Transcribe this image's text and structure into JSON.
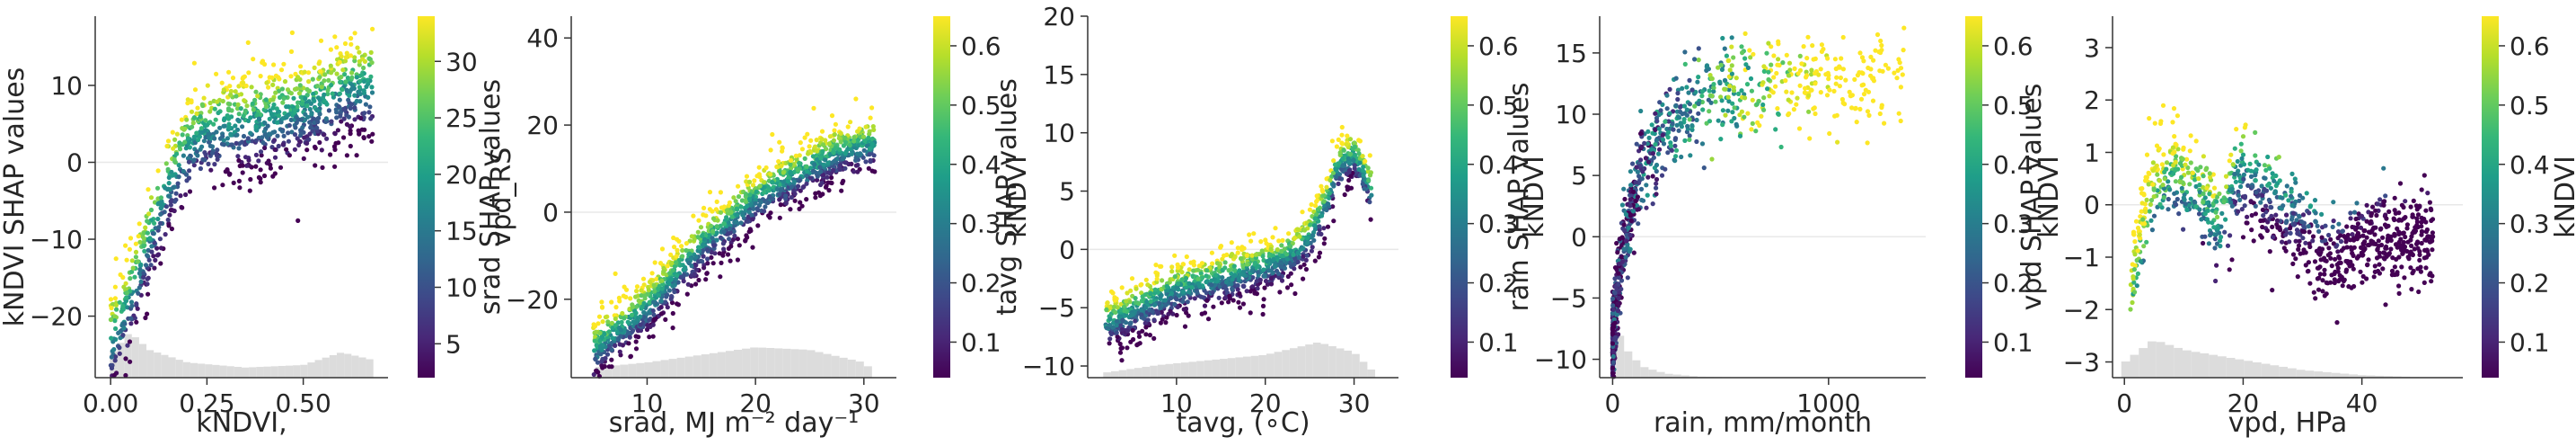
{
  "chart_data": [
    {
      "type": "scatter",
      "xlabel": "kNDVI,",
      "ylabel": "kNDVI SHAP values",
      "xlim": [
        -0.04,
        0.72
      ],
      "ylim": [
        -28,
        19
      ],
      "xticks": [
        0.0,
        0.25,
        0.5
      ],
      "xtick_labels": [
        "0.00",
        "0.25",
        "0.50"
      ],
      "yticks": [
        -20,
        -10,
        0,
        10
      ],
      "ytick_labels": [
        "−20",
        "−10",
        "0",
        "10"
      ],
      "colorbar": {
        "label": "vpd_RS",
        "min": 2,
        "max": 34,
        "ticks": [
          5,
          10,
          15,
          20,
          25,
          30
        ],
        "tick_labels": [
          "5",
          "10",
          "15",
          "20",
          "25",
          "30"
        ]
      },
      "colormap": [
        "#440154",
        "#482878",
        "#3e4989",
        "#31688e",
        "#26828e",
        "#1f9e89",
        "#35b779",
        "#6ece58",
        "#b5de2b",
        "#fde725"
      ],
      "grid": false,
      "zero_line": 0,
      "histogram_color": "#dcdcdc",
      "trend": [
        [
          0.0,
          -24
        ],
        [
          0.05,
          -18
        ],
        [
          0.1,
          -10
        ],
        [
          0.15,
          -3
        ],
        [
          0.2,
          2
        ],
        [
          0.25,
          4
        ],
        [
          0.35,
          5
        ],
        [
          0.45,
          6
        ],
        [
          0.55,
          7.5
        ],
        [
          0.6,
          9
        ],
        [
          0.67,
          10
        ]
      ],
      "x_range": [
        0.0,
        0.68
      ],
      "spread": 3.5,
      "color_mode": "vertical",
      "points": 1100,
      "hist_profile": [
        [
          0.0,
          0.45
        ],
        [
          0.05,
          0.9
        ],
        [
          0.1,
          0.55
        ],
        [
          0.2,
          0.3
        ],
        [
          0.35,
          0.2
        ],
        [
          0.5,
          0.25
        ],
        [
          0.6,
          0.5
        ],
        [
          0.68,
          0.35
        ]
      ]
    },
    {
      "type": "scatter",
      "xlabel": "srad, MJ m⁻² day⁻¹",
      "ylabel": "srad SHAP values",
      "xlim": [
        3,
        33
      ],
      "ylim": [
        -38,
        45
      ],
      "xticks": [
        10,
        20,
        30
      ],
      "xtick_labels": [
        "10",
        "20",
        "30"
      ],
      "yticks": [
        -20,
        0,
        20,
        40
      ],
      "ytick_labels": [
        "−20",
        "0",
        "20",
        "40"
      ],
      "colorbar": {
        "label": "kNDVI",
        "min": 0.04,
        "max": 0.65,
        "ticks": [
          0.1,
          0.2,
          0.3,
          0.4,
          0.5,
          0.6
        ],
        "tick_labels": [
          "0.1",
          "0.2",
          "0.3",
          "0.4",
          "0.5",
          "0.6"
        ]
      },
      "colormap": [
        "#440154",
        "#482878",
        "#3e4989",
        "#31688e",
        "#26828e",
        "#1f9e89",
        "#35b779",
        "#6ece58",
        "#b5de2b",
        "#fde725"
      ],
      "grid": false,
      "zero_line": 0,
      "histogram_color": "#dcdcdc",
      "trend": [
        [
          5,
          -32
        ],
        [
          10,
          -22
        ],
        [
          15,
          -8
        ],
        [
          20,
          3
        ],
        [
          25,
          10
        ],
        [
          28,
          14
        ],
        [
          30,
          15
        ]
      ],
      "x_range": [
        5,
        31
      ],
      "spread": 3.5,
      "color_mode": "vertical",
      "points": 1300,
      "hist_profile": [
        [
          5,
          0.2
        ],
        [
          10,
          0.3
        ],
        [
          15,
          0.45
        ],
        [
          20,
          0.6
        ],
        [
          25,
          0.55
        ],
        [
          30,
          0.3
        ],
        [
          31,
          0.1
        ]
      ]
    },
    {
      "type": "scatter",
      "xlabel": "tavg, (∘C)",
      "ylabel": "tavg SHAP values",
      "xlim": [
        0,
        35
      ],
      "ylim": [
        -11,
        20
      ],
      "xticks": [
        10,
        20,
        30
      ],
      "xtick_labels": [
        "10",
        "20",
        "30"
      ],
      "yticks": [
        -10,
        -5,
        0,
        5,
        10,
        15,
        20
      ],
      "ytick_labels": [
        "−10",
        "−5",
        "0",
        "5",
        "10",
        "15",
        "20"
      ],
      "colorbar": {
        "label": "kNDVI",
        "min": 0.04,
        "max": 0.65,
        "ticks": [
          0.1,
          0.2,
          0.3,
          0.4,
          0.5,
          0.6
        ],
        "tick_labels": [
          "0.1",
          "0.2",
          "0.3",
          "0.4",
          "0.5",
          "0.6"
        ]
      },
      "colormap": [
        "#440154",
        "#482878",
        "#3e4989",
        "#31688e",
        "#26828e",
        "#1f9e89",
        "#35b779",
        "#6ece58",
        "#b5de2b",
        "#fde725"
      ],
      "grid": false,
      "zero_line": 0,
      "histogram_color": "#dcdcdc",
      "trend": [
        [
          2,
          -6.5
        ],
        [
          6,
          -5
        ],
        [
          10,
          -3.5
        ],
        [
          15,
          -2.5
        ],
        [
          20,
          -1.5
        ],
        [
          23,
          -0.5
        ],
        [
          25,
          1
        ],
        [
          27,
          4
        ],
        [
          28,
          7
        ],
        [
          30,
          8
        ],
        [
          32,
          5
        ]
      ],
      "x_range": [
        2,
        32
      ],
      "spread": 1.2,
      "color_mode": "vertical",
      "points": 1200,
      "hist_profile": [
        [
          2,
          0.1
        ],
        [
          8,
          0.25
        ],
        [
          14,
          0.35
        ],
        [
          20,
          0.45
        ],
        [
          26,
          0.7
        ],
        [
          30,
          0.5
        ],
        [
          32,
          0.15
        ]
      ]
    },
    {
      "type": "scatter",
      "xlabel": "rain, mm/month",
      "ylabel": "rain SHAP values",
      "xlim": [
        -60,
        1450
      ],
      "ylim": [
        -11.5,
        18
      ],
      "xticks": [
        0,
        1000
      ],
      "xtick_labels": [
        "0",
        "1000"
      ],
      "yticks": [
        -10,
        -5,
        0,
        5,
        10,
        15
      ],
      "ytick_labels": [
        "−10",
        "−5",
        "0",
        "5",
        "10",
        "15"
      ],
      "colorbar": {
        "label": "kNDVI",
        "min": 0.04,
        "max": 0.65,
        "ticks": [
          0.1,
          0.2,
          0.3,
          0.4,
          0.5,
          0.6
        ],
        "tick_labels": [
          "0.1",
          "0.2",
          "0.3",
          "0.4",
          "0.5",
          "0.6"
        ]
      },
      "colormap": [
        "#440154",
        "#482878",
        "#3e4989",
        "#31688e",
        "#26828e",
        "#1f9e89",
        "#35b779",
        "#6ece58",
        "#b5de2b",
        "#fde725"
      ],
      "grid": false,
      "zero_line": 0,
      "histogram_color": "#dcdcdc",
      "trend": [
        [
          0,
          -9
        ],
        [
          25,
          -4
        ],
        [
          60,
          0
        ],
        [
          120,
          5
        ],
        [
          200,
          8
        ],
        [
          300,
          10
        ],
        [
          500,
          12
        ],
        [
          800,
          12.5
        ],
        [
          1100,
          12.5
        ],
        [
          1350,
          13
        ]
      ],
      "x_range": [
        0,
        1350
      ],
      "spread": 1.8,
      "color_mode": "x",
      "points": 900,
      "hist_profile": [
        [
          0,
          1.0
        ],
        [
          40,
          0.8
        ],
        [
          80,
          0.45
        ],
        [
          150,
          0.2
        ],
        [
          250,
          0.08
        ],
        [
          400,
          0.02
        ],
        [
          700,
          0.0
        ]
      ]
    },
    {
      "type": "scatter",
      "xlabel": "vpd, HPa",
      "ylabel": "vpd SHAP values",
      "xlim": [
        -2,
        57
      ],
      "ylim": [
        -3.3,
        3.6
      ],
      "xticks": [
        0,
        20,
        40
      ],
      "xtick_labels": [
        "0",
        "20",
        "40"
      ],
      "yticks": [
        -3,
        -2,
        -1,
        0,
        1,
        2,
        3
      ],
      "ytick_labels": [
        "−3",
        "−2",
        "−1",
        "0",
        "1",
        "2",
        "3"
      ],
      "colorbar": {
        "label": "kNDVI",
        "min": 0.04,
        "max": 0.65,
        "ticks": [
          0.1,
          0.2,
          0.3,
          0.4,
          0.5,
          0.6
        ],
        "tick_labels": [
          "0.1",
          "0.2",
          "0.3",
          "0.4",
          "0.5",
          "0.6"
        ]
      },
      "colormap": [
        "#440154",
        "#482878",
        "#3e4989",
        "#31688e",
        "#26828e",
        "#1f9e89",
        "#35b779",
        "#6ece58",
        "#b5de2b",
        "#fde725"
      ],
      "grid": false,
      "zero_line": 0,
      "histogram_color": "#dcdcdc",
      "trend": [
        [
          1,
          -1.5
        ],
        [
          3,
          -0.3
        ],
        [
          5,
          0.5
        ],
        [
          8,
          0.8
        ],
        [
          10,
          0.5
        ],
        [
          13,
          0.2
        ],
        [
          16,
          -0.5
        ],
        [
          18,
          0.3
        ],
        [
          20,
          0.6
        ],
        [
          23,
          0.2
        ],
        [
          27,
          -0.3
        ],
        [
          30,
          -0.5
        ],
        [
          33,
          -0.8
        ],
        [
          36,
          -1.0
        ],
        [
          40,
          -0.7
        ],
        [
          45,
          -0.6
        ],
        [
          52,
          -0.6
        ]
      ],
      "x_range": [
        1,
        52
      ],
      "spread": 0.45,
      "color_mode": "x-inverse",
      "points": 1000,
      "hist_profile": [
        [
          0,
          0.3
        ],
        [
          5,
          0.75
        ],
        [
          10,
          0.55
        ],
        [
          20,
          0.35
        ],
        [
          30,
          0.15
        ],
        [
          40,
          0.05
        ],
        [
          52,
          0.0
        ]
      ]
    }
  ]
}
